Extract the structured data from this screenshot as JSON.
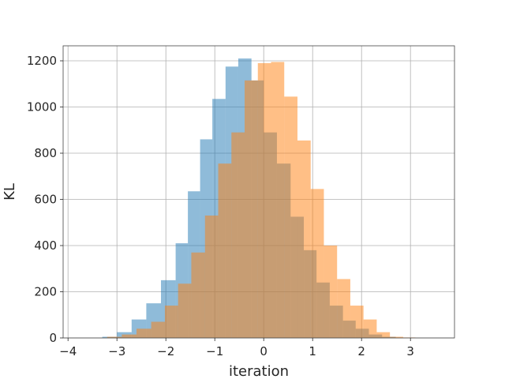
{
  "chart_data": {
    "type": "bar",
    "xlabel": "iteration",
    "ylabel": "KL",
    "xlim": [
      -4.1,
      3.9
    ],
    "ylim": [
      0,
      1265
    ],
    "grid": true,
    "xticks": [
      -4,
      -3,
      -2,
      -1,
      0,
      1,
      2,
      3
    ],
    "yticks": [
      0,
      200,
      400,
      600,
      800,
      1000,
      1200
    ],
    "bar_alpha": 0.5,
    "series": [
      {
        "color": "#1f77b4",
        "bin_edges": [
          -3.3,
          -3.0,
          -2.7,
          -2.4,
          -2.1,
          -1.8,
          -1.55,
          -1.3,
          -1.05,
          -0.78,
          -0.52,
          -0.25,
          0.0,
          0.27,
          0.55,
          0.82,
          1.08,
          1.35,
          1.62,
          1.88,
          2.15,
          2.42,
          2.7
        ],
        "counts": [
          5,
          25,
          80,
          150,
          250,
          410,
          635,
          860,
          1035,
          1175,
          1210,
          1115,
          890,
          755,
          525,
          380,
          240,
          140,
          75,
          40,
          15,
          5
        ]
      },
      {
        "color": "#ff7f0e",
        "bin_edges": [
          -3.2,
          -2.9,
          -2.6,
          -2.3,
          -2.02,
          -1.75,
          -1.48,
          -1.2,
          -0.93,
          -0.66,
          -0.39,
          -0.12,
          0.15,
          0.42,
          0.69,
          0.96,
          1.23,
          1.5,
          1.77,
          2.04,
          2.31,
          2.58,
          2.85,
          3.1
        ],
        "counts": [
          5,
          15,
          40,
          70,
          140,
          235,
          370,
          530,
          755,
          890,
          1115,
          1190,
          1195,
          1045,
          855,
          645,
          400,
          255,
          140,
          80,
          25,
          5,
          2
        ]
      }
    ]
  }
}
